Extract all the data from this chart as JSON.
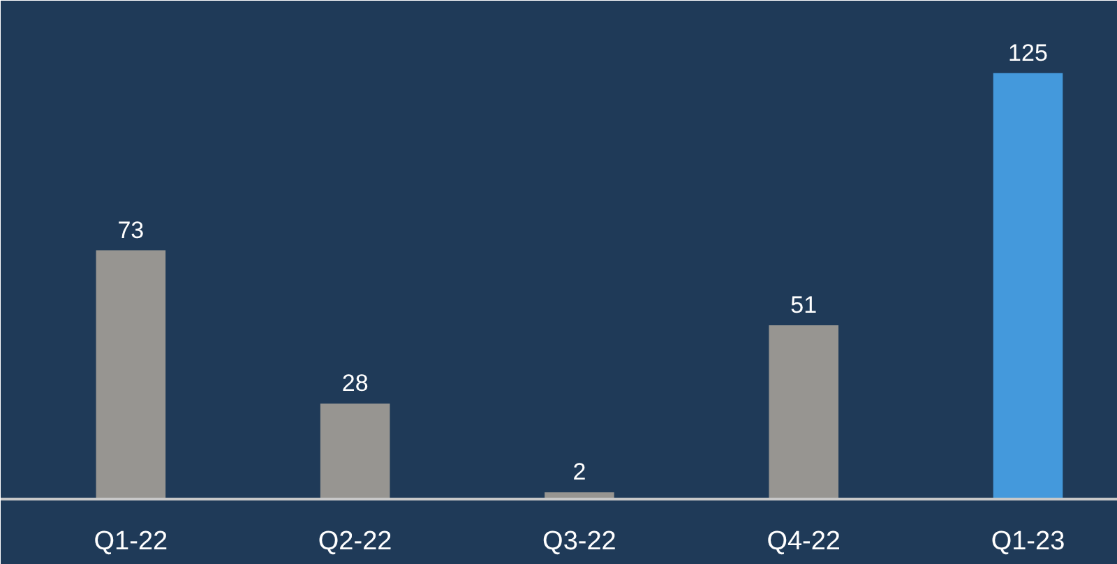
{
  "chart_data": {
    "type": "bar",
    "categories": [
      "Q1-22",
      "Q2-22",
      "Q3-22",
      "Q4-22",
      "Q1-23"
    ],
    "values": [
      73,
      28,
      2,
      51,
      125
    ],
    "colors": [
      "#979591",
      "#979591",
      "#979591",
      "#979591",
      "#4499dc"
    ],
    "data_labels": true,
    "grid": false
  }
}
